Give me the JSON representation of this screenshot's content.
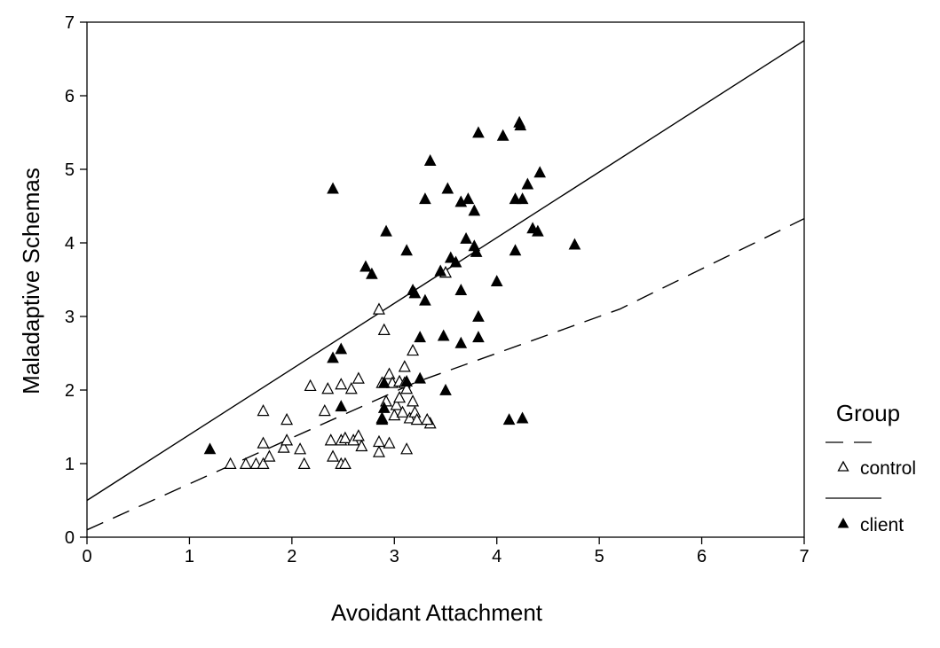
{
  "chart_data": {
    "type": "scatter",
    "xlabel": "Avoidant Attachment",
    "ylabel": "Maladaptive Schemas",
    "xlim": [
      0,
      7
    ],
    "ylim": [
      0,
      7
    ],
    "xticks": [
      "0",
      "1",
      "2",
      "3",
      "4",
      "5",
      "6",
      "7"
    ],
    "yticks": [
      "0",
      "1",
      "2",
      "3",
      "4",
      "5",
      "6",
      "7"
    ],
    "grid": false,
    "legend": {
      "title": "Group",
      "position": "right",
      "entries": [
        {
          "label": "control",
          "marker": "open-triangle",
          "line": "dashed"
        },
        {
          "label": "client",
          "marker": "filled-triangle",
          "line": "solid"
        }
      ]
    },
    "series": [
      {
        "name": "control",
        "marker": "open-triangle",
        "color": "#000000",
        "fit_line": {
          "style": "dashed",
          "points": [
            [
              0,
              0.1
            ],
            [
              3.2,
              2.1
            ],
            [
              5.2,
              3.1
            ],
            [
              7,
              4.33
            ]
          ]
        },
        "points": [
          [
            1.4,
            1.0
          ],
          [
            1.55,
            1.0
          ],
          [
            1.65,
            1.0
          ],
          [
            1.72,
            1.0
          ],
          [
            1.78,
            1.1
          ],
          [
            1.72,
            1.28
          ],
          [
            1.72,
            1.72
          ],
          [
            1.92,
            1.22
          ],
          [
            1.95,
            1.32
          ],
          [
            1.95,
            1.6
          ],
          [
            2.08,
            1.2
          ],
          [
            2.12,
            1.0
          ],
          [
            2.18,
            2.06
          ],
          [
            2.32,
            1.72
          ],
          [
            2.35,
            2.02
          ],
          [
            2.38,
            1.32
          ],
          [
            2.4,
            1.1
          ],
          [
            2.48,
            1.0
          ],
          [
            2.48,
            1.32
          ],
          [
            2.48,
            2.08
          ],
          [
            2.52,
            1.35
          ],
          [
            2.52,
            1.0
          ],
          [
            2.58,
            2.02
          ],
          [
            2.6,
            1.32
          ],
          [
            2.65,
            2.16
          ],
          [
            2.65,
            1.38
          ],
          [
            2.68,
            1.24
          ],
          [
            2.85,
            3.1
          ],
          [
            2.85,
            1.16
          ],
          [
            2.85,
            1.3
          ],
          [
            2.88,
            2.1
          ],
          [
            2.88,
            1.62
          ],
          [
            2.9,
            2.82
          ],
          [
            2.92,
            1.85
          ],
          [
            2.95,
            2.22
          ],
          [
            2.95,
            1.28
          ],
          [
            2.98,
            2.1
          ],
          [
            3.0,
            1.66
          ],
          [
            3.02,
            1.8
          ],
          [
            3.05,
            2.12
          ],
          [
            3.05,
            1.9
          ],
          [
            3.08,
            1.7
          ],
          [
            3.1,
            2.32
          ],
          [
            3.1,
            2.1
          ],
          [
            3.12,
            1.2
          ],
          [
            3.12,
            2.02
          ],
          [
            3.15,
            1.62
          ],
          [
            3.18,
            1.85
          ],
          [
            3.18,
            2.54
          ],
          [
            3.2,
            1.7
          ],
          [
            3.22,
            1.6
          ],
          [
            3.35,
            1.55
          ],
          [
            3.5,
            3.6
          ],
          [
            3.32,
            1.6
          ]
        ]
      },
      {
        "name": "client",
        "marker": "filled-triangle",
        "color": "#000000",
        "fit_line": {
          "style": "solid",
          "points": [
            [
              0,
              0.5
            ],
            [
              7,
              6.75
            ]
          ]
        },
        "points": [
          [
            1.2,
            1.2
          ],
          [
            2.4,
            4.74
          ],
          [
            2.4,
            2.44
          ],
          [
            2.48,
            2.56
          ],
          [
            2.48,
            1.78
          ],
          [
            2.72,
            3.68
          ],
          [
            2.78,
            3.58
          ],
          [
            2.88,
            1.6
          ],
          [
            2.9,
            1.76
          ],
          [
            2.9,
            2.1
          ],
          [
            2.92,
            4.16
          ],
          [
            3.12,
            3.9
          ],
          [
            3.12,
            2.12
          ],
          [
            3.18,
            3.36
          ],
          [
            3.2,
            3.32
          ],
          [
            3.25,
            2.16
          ],
          [
            3.25,
            2.72
          ],
          [
            3.3,
            3.22
          ],
          [
            3.3,
            4.6
          ],
          [
            3.35,
            5.12
          ],
          [
            3.45,
            3.62
          ],
          [
            3.48,
            2.74
          ],
          [
            3.5,
            2.0
          ],
          [
            3.52,
            4.74
          ],
          [
            3.55,
            3.8
          ],
          [
            3.6,
            3.74
          ],
          [
            3.65,
            4.56
          ],
          [
            3.65,
            3.36
          ],
          [
            3.65,
            2.64
          ],
          [
            3.7,
            4.06
          ],
          [
            3.72,
            4.6
          ],
          [
            3.78,
            4.44
          ],
          [
            3.78,
            3.96
          ],
          [
            3.8,
            3.88
          ],
          [
            3.82,
            5.5
          ],
          [
            3.82,
            3.0
          ],
          [
            3.82,
            2.72
          ],
          [
            4.0,
            3.48
          ],
          [
            4.06,
            5.46
          ],
          [
            4.12,
            1.6
          ],
          [
            4.18,
            4.6
          ],
          [
            4.18,
            3.9
          ],
          [
            4.22,
            5.64
          ],
          [
            4.23,
            5.6
          ],
          [
            4.25,
            4.6
          ],
          [
            4.25,
            1.62
          ],
          [
            4.3,
            4.8
          ],
          [
            4.35,
            4.2
          ],
          [
            4.4,
            4.16
          ],
          [
            4.42,
            4.96
          ],
          [
            4.76,
            3.98
          ]
        ]
      }
    ]
  }
}
